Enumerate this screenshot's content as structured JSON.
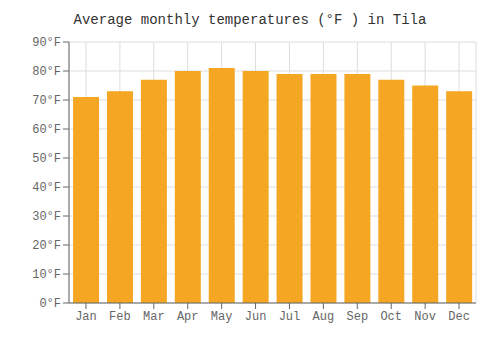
{
  "chart_data": {
    "type": "bar",
    "title": "Average monthly temperatures (°F ) in Tila",
    "categories": [
      "Jan",
      "Feb",
      "Mar",
      "Apr",
      "May",
      "Jun",
      "Jul",
      "Aug",
      "Sep",
      "Oct",
      "Nov",
      "Dec"
    ],
    "values": [
      71,
      73,
      77,
      80,
      81,
      80,
      79,
      79,
      79,
      77,
      75,
      73
    ],
    "color": "#F5A623",
    "ylim": [
      0,
      90
    ],
    "yticks": [
      {
        "value": 0,
        "label": "0°F"
      },
      {
        "value": 10,
        "label": "10°F"
      },
      {
        "value": 20,
        "label": "20°F"
      },
      {
        "value": 30,
        "label": "30°F"
      },
      {
        "value": 40,
        "label": "40°F"
      },
      {
        "value": 50,
        "label": "50°F"
      },
      {
        "value": 60,
        "label": "60°F"
      },
      {
        "value": 70,
        "label": "70°F"
      },
      {
        "value": 80,
        "label": "80°F"
      },
      {
        "value": 90,
        "label": "90°F"
      }
    ],
    "grid": true
  }
}
